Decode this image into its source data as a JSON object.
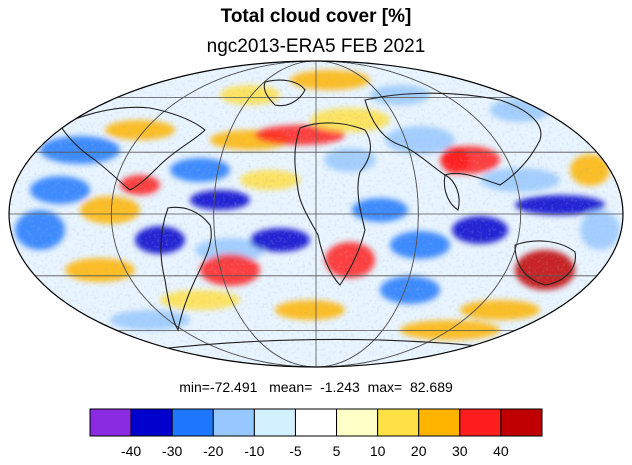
{
  "title": "Total cloud cover [%]",
  "subtitle": "ngc2013-ERA5 FEB 2021",
  "stats": {
    "min_label": "min=",
    "min": "-72.491",
    "mean_label": "mean=",
    "mean": "-1.243",
    "max_label": "max=",
    "max": "82.689"
  },
  "colorbar": {
    "colors": [
      "#8a2be2",
      "#0000cd",
      "#1e78ff",
      "#96c8ff",
      "#d2f0ff",
      "#ffffff",
      "#ffffc8",
      "#ffe145",
      "#ffb400",
      "#ff1e1e",
      "#c00000"
    ],
    "labels": [
      "-40",
      "-30",
      "-20",
      "-10",
      "-5",
      "5",
      "10",
      "20",
      "30",
      "40"
    ]
  },
  "map": {
    "projection": "Mollweide",
    "grid": true
  }
}
